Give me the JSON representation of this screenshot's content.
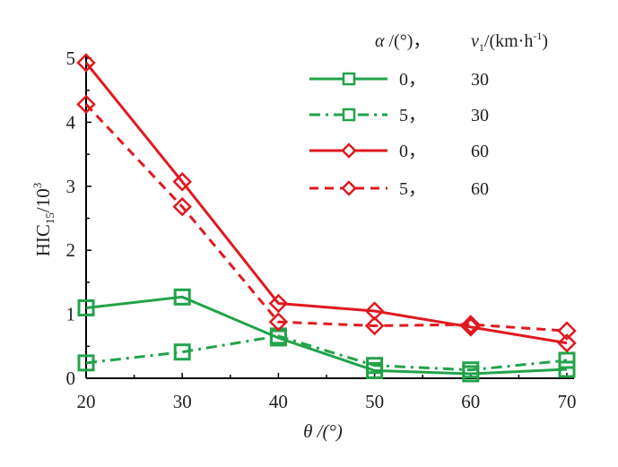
{
  "chart_data": {
    "type": "line",
    "title": "",
    "xlabel": "θ /(°)",
    "ylabel": "HIC15/10^3",
    "ylabel_main": "HIC",
    "ylabel_sub": "15",
    "ylabel_rest": "/10",
    "ylabel_sup": "3",
    "xlim": [
      20,
      70
    ],
    "ylim": [
      0,
      5
    ],
    "x": [
      20,
      30,
      40,
      50,
      60,
      70
    ],
    "xticks": [
      "20",
      "30",
      "40",
      "50",
      "60",
      "70"
    ],
    "yticks": [
      "0",
      "1",
      "2",
      "3",
      "4",
      "5"
    ],
    "grid": false,
    "legend_position": "top-right",
    "legend_header": {
      "alpha": "α /(°)，",
      "v": "v",
      "v_sub": "1",
      "v_rest": "/(km·h",
      "v_sup": "-1",
      "v_close": ")"
    },
    "series": [
      {
        "name": "0，30",
        "alpha": "0，",
        "v1": "30",
        "color": "#22a34a",
        "dash": "solid",
        "marker": "square",
        "values": [
          1.1,
          1.27,
          0.63,
          0.12,
          0.07,
          0.14
        ]
      },
      {
        "name": "5，30",
        "alpha": "5，",
        "v1": "30",
        "color": "#22a34a",
        "dash": "dashdot",
        "marker": "square",
        "values": [
          0.24,
          0.41,
          0.66,
          0.2,
          0.13,
          0.28
        ]
      },
      {
        "name": "0，60",
        "alpha": "0，",
        "v1": "60",
        "color": "#e0191f",
        "dash": "solid",
        "marker": "diamond",
        "values": [
          4.93,
          3.07,
          1.17,
          1.05,
          0.8,
          0.55
        ]
      },
      {
        "name": "5，60",
        "alpha": "5，",
        "v1": "60",
        "color": "#e0191f",
        "dash": "dashed",
        "marker": "diamond",
        "values": [
          4.28,
          2.68,
          0.88,
          0.82,
          0.84,
          0.74
        ]
      }
    ]
  }
}
